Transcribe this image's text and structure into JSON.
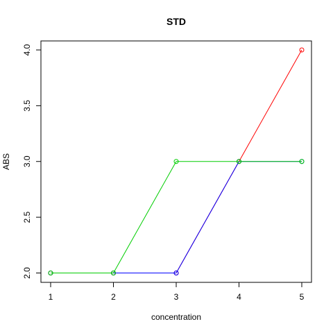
{
  "chart_data": {
    "type": "line",
    "title": "STD",
    "xlabel": "concentration",
    "ylabel": "ABS",
    "x": [
      1,
      2,
      3,
      4,
      5
    ],
    "xlim": [
      1,
      5
    ],
    "ylim": [
      2.0,
      4.0
    ],
    "x_ticks": [
      "1",
      "2",
      "3",
      "4",
      "5"
    ],
    "y_ticks": [
      "2.0",
      "2.5",
      "3.0",
      "3.5",
      "4.0"
    ],
    "grid": false,
    "legend": "none",
    "series": [
      {
        "values": [
          2,
          2,
          2,
          3,
          4
        ],
        "color": "#ff0000"
      },
      {
        "values": [
          2,
          2,
          2,
          3,
          3
        ],
        "color": "#0000ff"
      },
      {
        "values": [
          2,
          2,
          3,
          3,
          3
        ],
        "color": "#00cd00"
      }
    ],
    "overlay_color": "#4daf00"
  }
}
